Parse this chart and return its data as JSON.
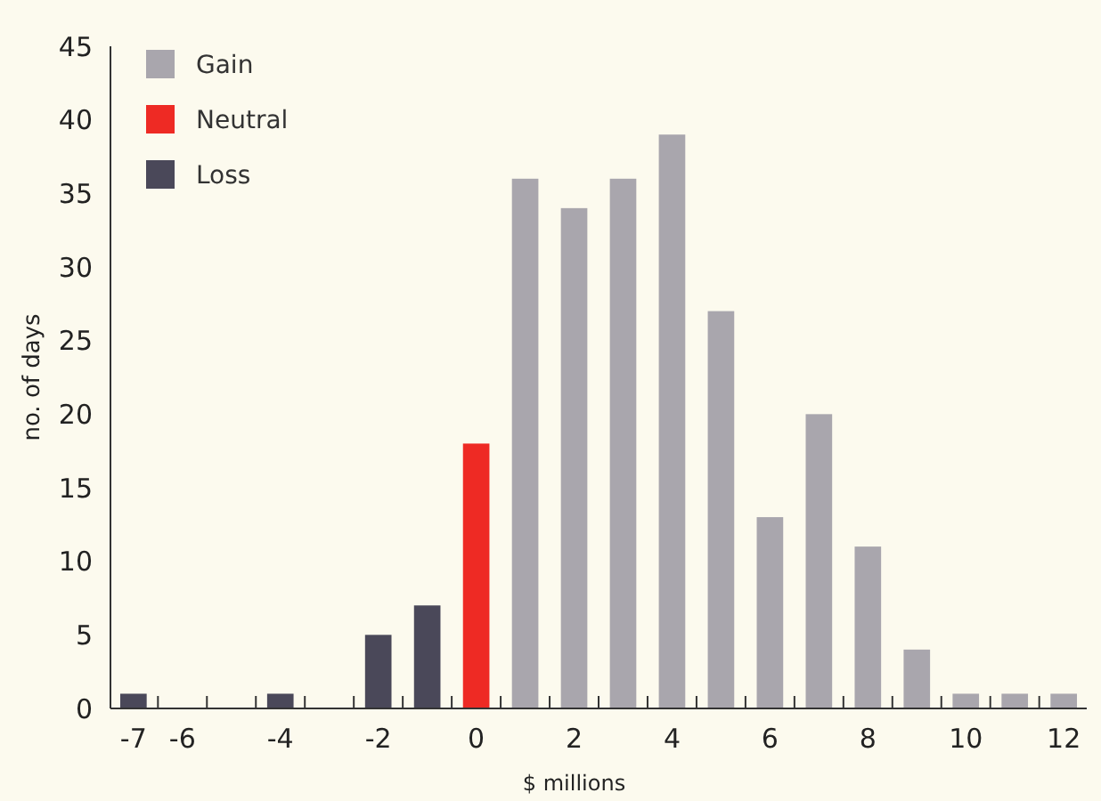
{
  "chart_data": {
    "type": "bar",
    "xlabel": "$ millions",
    "ylabel": "no. of days",
    "categories": [
      "-7",
      "-6",
      null,
      "-4",
      null,
      "-2",
      null,
      "0",
      null,
      "2",
      null,
      "4",
      null,
      "6",
      null,
      "8",
      null,
      "10",
      null,
      "12"
    ],
    "series": [
      {
        "name": "Gain",
        "color": "#a9a6ad",
        "values": [
          null,
          null,
          null,
          null,
          null,
          null,
          null,
          null,
          36,
          34,
          36,
          39,
          27,
          13,
          20,
          11,
          4,
          1,
          1,
          1
        ]
      },
      {
        "name": "Neutral",
        "color": "#ee2a24",
        "values": [
          null,
          null,
          null,
          null,
          null,
          null,
          null,
          18,
          null,
          null,
          null,
          null,
          null,
          null,
          null,
          null,
          null,
          null,
          null,
          null
        ]
      },
      {
        "name": "Loss",
        "color": "#4a4859",
        "values": [
          1,
          0,
          0,
          1,
          0,
          5,
          7,
          null,
          null,
          null,
          null,
          null,
          null,
          null,
          null,
          null,
          null,
          null,
          null,
          null
        ]
      }
    ],
    "ylim": [
      0,
      45
    ],
    "yticks": [
      0,
      5,
      10,
      15,
      20,
      25,
      30,
      35,
      40,
      45
    ],
    "grid": false,
    "legend": "top left"
  }
}
